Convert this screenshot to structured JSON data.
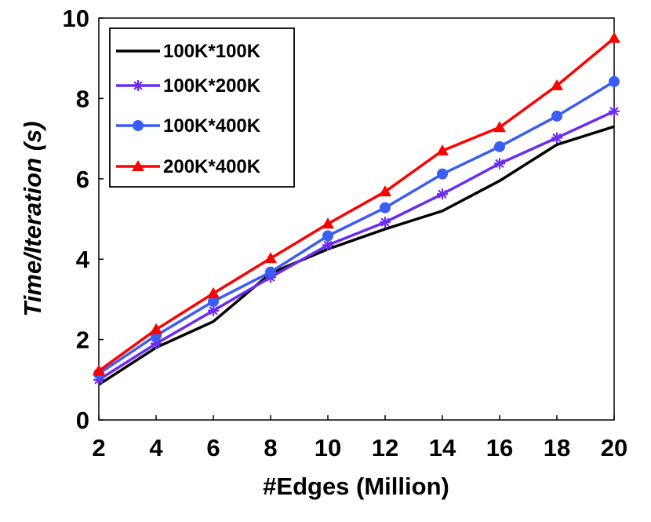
{
  "chart_data": {
    "type": "line",
    "xlabel": "#Edges (Million)",
    "ylabel": "Time/Iteration (s)",
    "x": [
      2,
      4,
      6,
      8,
      10,
      12,
      14,
      16,
      18,
      20
    ],
    "xlim": [
      2,
      20
    ],
    "ylim": [
      0,
      10
    ],
    "xticks": [
      "2",
      "4",
      "6",
      "8",
      "10",
      "12",
      "14",
      "16",
      "18",
      "20"
    ],
    "yticks": [
      "0",
      "2",
      "4",
      "6",
      "8",
      "10"
    ],
    "grid": false,
    "legend_position": "top-left",
    "series": [
      {
        "name": "100K*100K",
        "color": "#000000",
        "marker": "none",
        "values": [
          0.88,
          1.8,
          2.45,
          3.65,
          4.25,
          4.75,
          5.2,
          5.95,
          6.85,
          7.3
        ]
      },
      {
        "name": "100K*200K",
        "color": "#6a2cf0",
        "marker": "asterisk",
        "values": [
          1.0,
          1.9,
          2.72,
          3.55,
          4.35,
          4.92,
          5.62,
          6.38,
          7.02,
          7.68
        ]
      },
      {
        "name": "100K*400K",
        "color": "#3b5ef2",
        "marker": "circle",
        "values": [
          1.15,
          2.1,
          2.95,
          3.68,
          4.58,
          5.28,
          6.12,
          6.8,
          7.56,
          8.42
        ]
      },
      {
        "name": "200K*400K",
        "color": "#ff0000",
        "marker": "triangle",
        "values": [
          1.22,
          2.25,
          3.15,
          4.02,
          4.88,
          5.68,
          6.7,
          7.28,
          8.32,
          9.5
        ]
      }
    ]
  }
}
